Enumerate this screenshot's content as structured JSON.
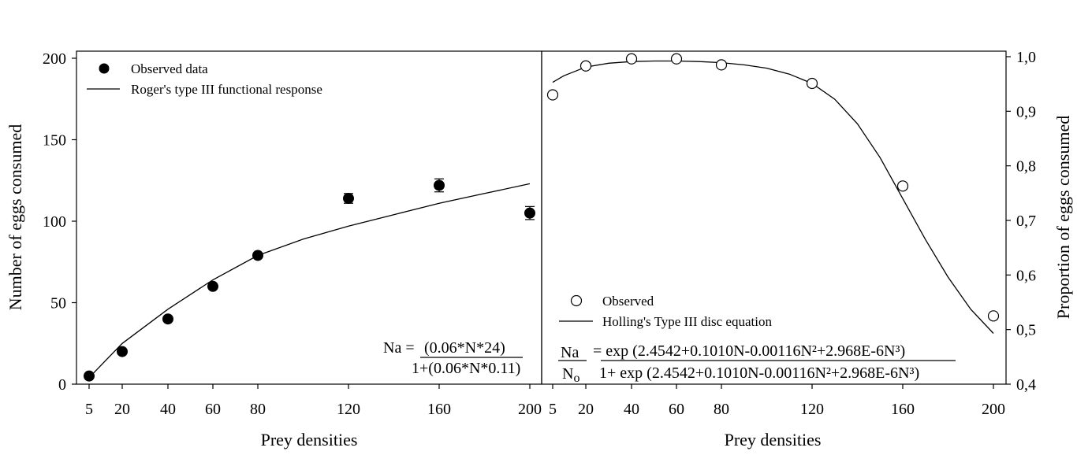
{
  "chart_data": [
    {
      "type": "scatter",
      "xlabel": "Prey densities",
      "ylabel": "Number of eggs consumed",
      "xlim": [
        5,
        200
      ],
      "ylim": [
        0,
        200
      ],
      "xticks": [
        "5",
        "20",
        "40",
        "60",
        "80",
        "120",
        "160",
        "200"
      ],
      "yticks": [
        "0",
        "50",
        "100",
        "150",
        "200"
      ],
      "legend": [
        "Observed data",
        "Roger's type III functional response"
      ],
      "legend_position": "top-left",
      "series": [
        {
          "name": "Observed data",
          "x": [
            5,
            20,
            40,
            60,
            80,
            120,
            160,
            200
          ],
          "y": [
            5,
            20,
            40,
            60,
            79,
            114,
            122,
            105
          ],
          "error": [
            0,
            0,
            0,
            0,
            0,
            3,
            4,
            4
          ]
        },
        {
          "name": "Roger's type III functional response",
          "x": [
            5,
            20,
            40,
            60,
            80,
            100,
            120,
            140,
            160,
            180,
            200
          ],
          "y": [
            4,
            25,
            46,
            64,
            79,
            89,
            97,
            104,
            111,
            117,
            123
          ]
        }
      ],
      "equation": {
        "lhs": "Na = ",
        "numerator": "(0.06*N*24)",
        "denominator": "1+(0.06*N*0.11)"
      }
    },
    {
      "type": "scatter",
      "xlabel": "Prey densities",
      "ylabel": "Proportion of eggs consumed",
      "xlim": [
        5,
        200
      ],
      "ylim": [
        0.4,
        1.0
      ],
      "xticks": [
        "5",
        "20",
        "40",
        "60",
        "80",
        "120",
        "160",
        "200"
      ],
      "yticks": [
        "0,4",
        "0,5",
        "0,6",
        "0,7",
        "0,8",
        "0,9",
        "1,0"
      ],
      "legend": [
        "Observed",
        "Holling's Type III disc equation"
      ],
      "legend_position": "bottom-left",
      "series": [
        {
          "name": "Observed",
          "x": [
            5,
            20,
            40,
            60,
            80,
            120,
            160,
            200
          ],
          "y": [
            0.93,
            0.983,
            0.996,
            0.996,
            0.985,
            0.951,
            0.763,
            0.525
          ]
        },
        {
          "name": "Holling's Type III disc equation",
          "x": [
            5,
            10,
            20,
            30,
            40,
            50,
            60,
            70,
            80,
            90,
            100,
            110,
            120,
            130,
            140,
            150,
            160,
            170,
            180,
            190,
            200
          ],
          "y": [
            0.953,
            0.965,
            0.981,
            0.988,
            0.991,
            0.992,
            0.992,
            0.991,
            0.989,
            0.985,
            0.979,
            0.968,
            0.951,
            0.922,
            0.877,
            0.815,
            0.74,
            0.665,
            0.596,
            0.537,
            0.493
          ]
        }
      ],
      "equation": {
        "lhs_numerator": "Na",
        "lhs_denominator": "N",
        "lhs_denominator_sub": "o",
        "numerator": "= exp (2.4542+0.1010N-0.00116N²+2.968E-6N³)",
        "denominator": "1+ exp (2.4542+0.1010N-0.00116N²+2.968E-6N³)"
      }
    }
  ]
}
